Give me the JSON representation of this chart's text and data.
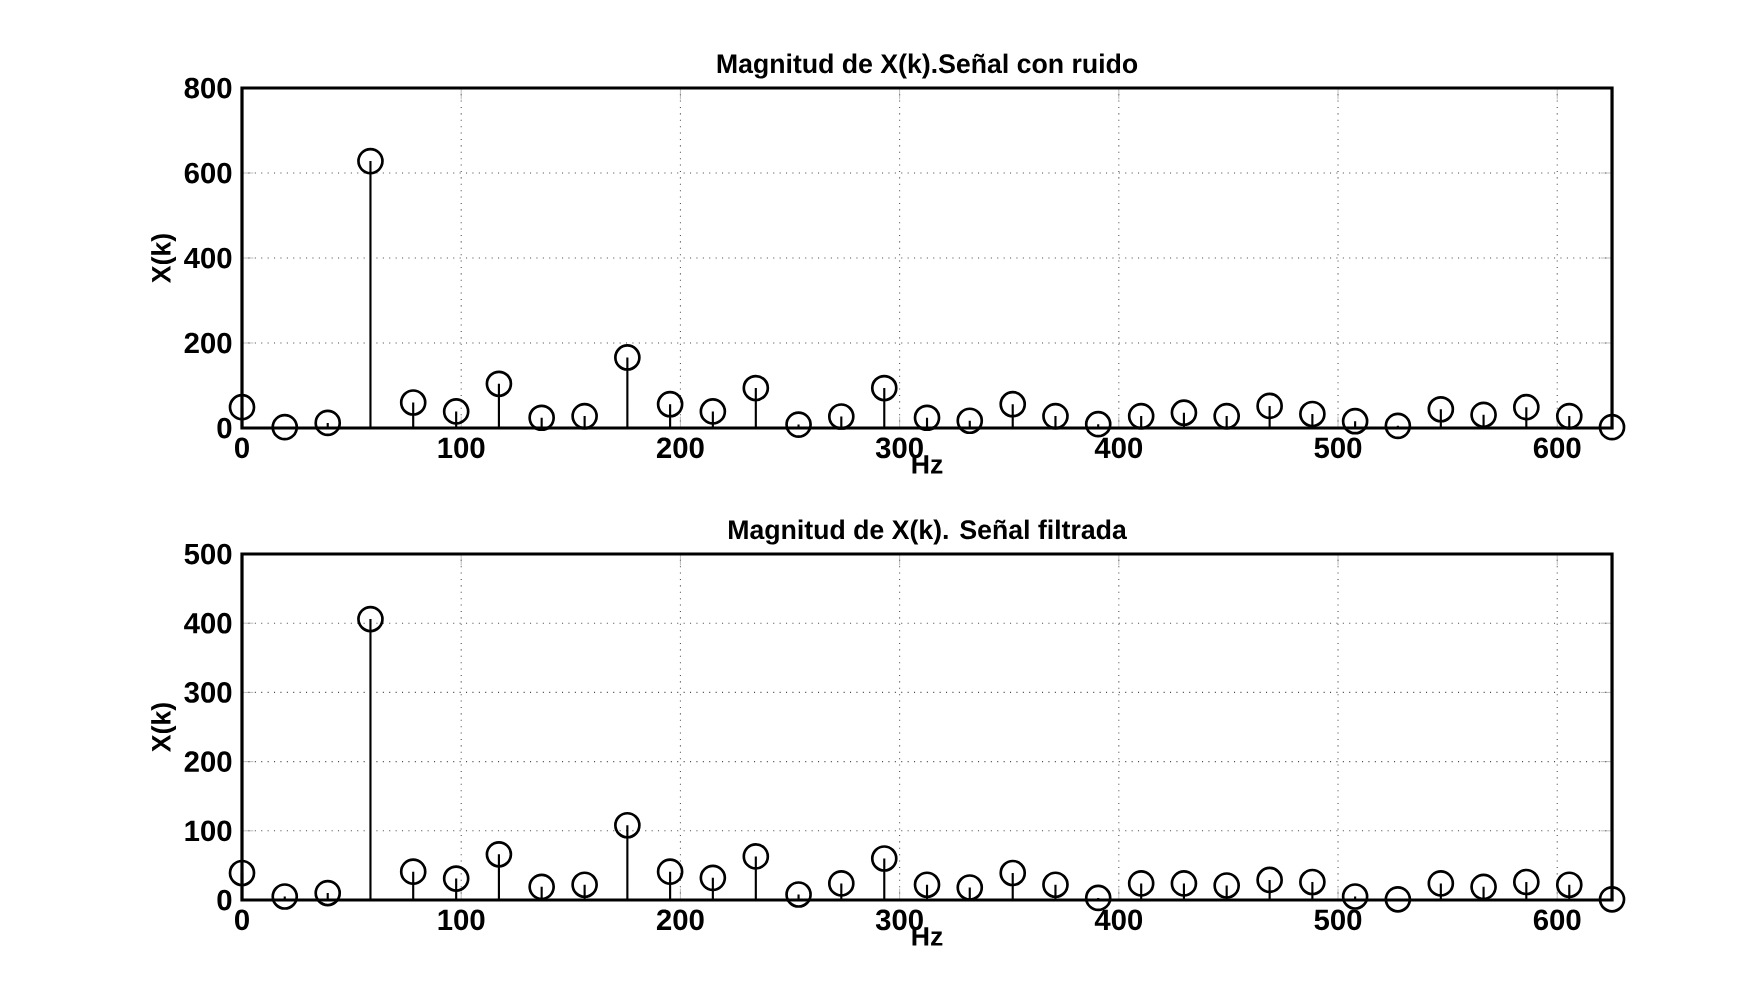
{
  "chart_data": [
    {
      "type": "lollipop",
      "title": "Magnitud de X(k).Señal con ruido",
      "xlabel": "Hz",
      "ylabel": "X(k)",
      "x": [
        0,
        19.5,
        39.1,
        58.6,
        78.1,
        97.7,
        117.2,
        136.7,
        156.3,
        175.8,
        195.3,
        214.8,
        234.4,
        253.9,
        273.4,
        293.0,
        312.5,
        332.0,
        351.6,
        371.1,
        390.6,
        410.2,
        429.7,
        449.2,
        468.8,
        488.3,
        507.8,
        527.3,
        546.9,
        566.4,
        585.9,
        605.5,
        625.0
      ],
      "values": [
        49,
        2,
        12,
        628,
        60,
        39,
        104,
        24,
        28,
        166,
        56,
        39,
        94,
        8,
        27,
        94,
        24,
        17,
        56,
        28,
        9,
        28,
        36,
        28,
        52,
        33,
        16,
        5,
        44,
        31,
        49,
        28,
        2
      ],
      "color": "#000000",
      "marker": "circle",
      "grid": true,
      "xlim": [
        0,
        625
      ],
      "xticks": [
        0,
        100,
        200,
        300,
        400,
        500,
        600
      ],
      "ylim": [
        0,
        800
      ],
      "yticks": [
        0,
        200,
        400,
        600,
        800
      ]
    },
    {
      "type": "lollipop",
      "title": "Magnitud de X(k). Señal filtrada",
      "xlabel": "Hz",
      "ylabel": "X(k)",
      "x": [
        0,
        19.5,
        39.1,
        58.6,
        78.1,
        97.7,
        117.2,
        136.7,
        156.3,
        175.8,
        195.3,
        214.8,
        234.4,
        253.9,
        273.4,
        293.0,
        312.5,
        332.0,
        351.6,
        371.1,
        390.6,
        410.2,
        429.7,
        449.2,
        468.8,
        488.3,
        507.8,
        527.3,
        546.9,
        566.4,
        585.9,
        605.5,
        625.0
      ],
      "values": [
        39,
        5,
        10,
        406,
        41,
        31,
        66,
        19,
        22,
        108,
        41,
        32,
        63,
        8,
        24,
        60,
        22,
        18,
        39,
        22,
        3,
        24,
        24,
        21,
        29,
        26,
        5,
        1,
        24,
        19,
        26,
        22,
        1
      ],
      "color": "#000000",
      "marker": "circle",
      "grid": true,
      "xlim": [
        0,
        625
      ],
      "xticks": [
        0,
        100,
        200,
        300,
        400,
        500,
        600
      ],
      "ylim": [
        0,
        500
      ],
      "yticks": [
        0,
        100,
        200,
        300,
        400,
        500
      ]
    }
  ]
}
